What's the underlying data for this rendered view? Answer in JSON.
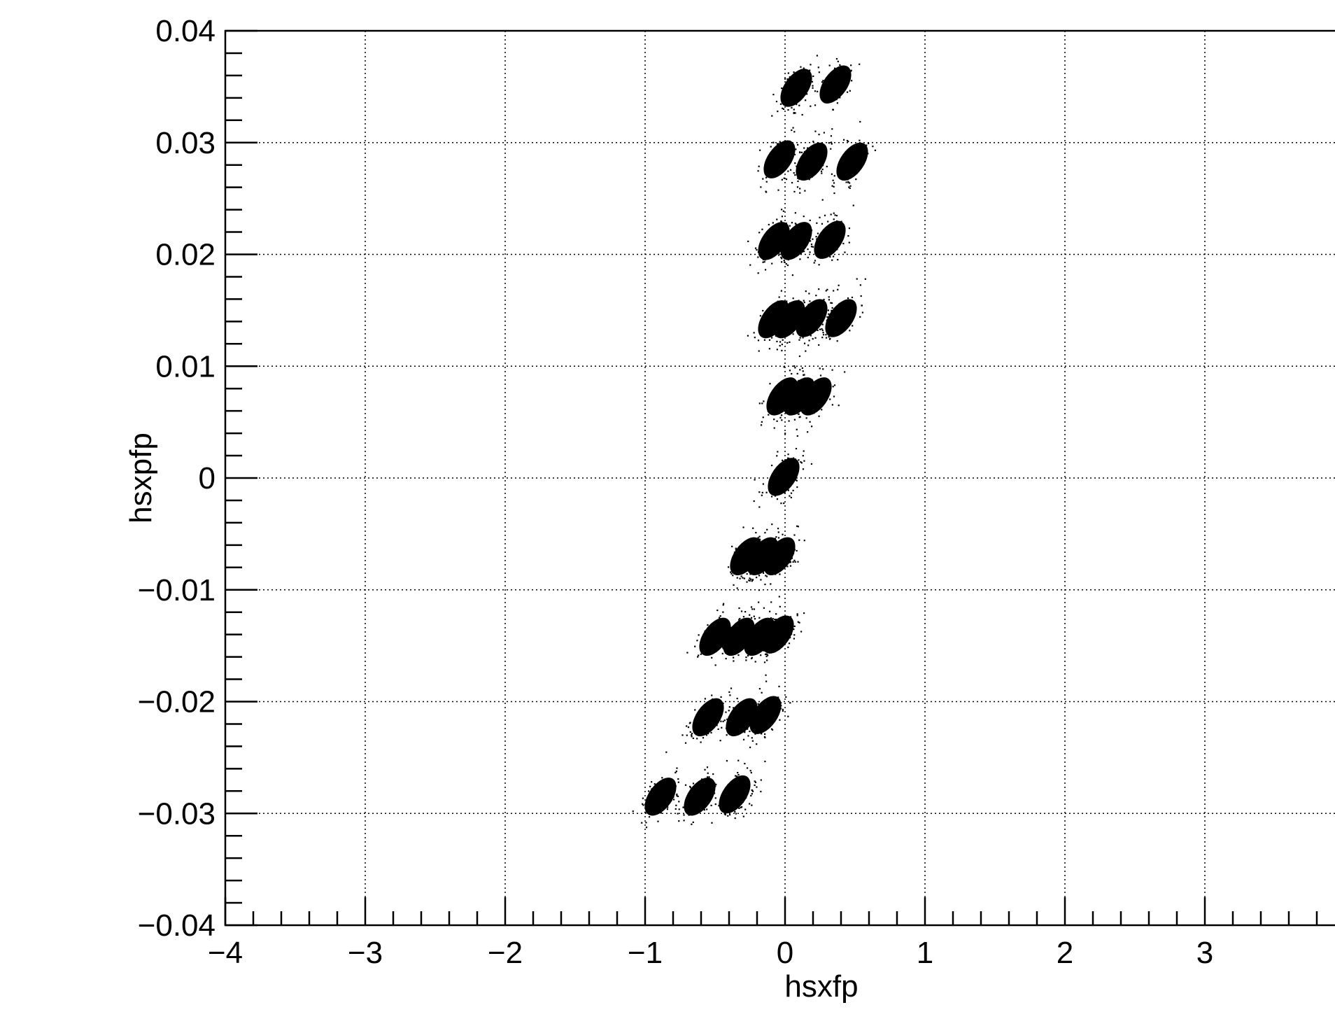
{
  "chart_data": {
    "type": "scatter",
    "xlabel": "hsxfp",
    "ylabel": "hsxpfp",
    "xlim": [
      -4,
      4
    ],
    "ylim": [
      -0.04,
      0.04
    ],
    "grid": true,
    "x_ticks": [
      -4,
      -3,
      -2,
      -1,
      0,
      1,
      2,
      3
    ],
    "x_tick_labels": [
      "−4",
      "−3",
      "−2",
      "−1",
      "0",
      "1",
      "2",
      "3"
    ],
    "y_ticks": [
      -0.04,
      -0.03,
      -0.02,
      -0.01,
      0,
      0.01,
      0.02,
      0.03,
      0.04
    ],
    "y_tick_labels": [
      "−0.04",
      "−0.03",
      "−0.02",
      "−0.01",
      "0",
      "0.01",
      "0.02",
      "0.03",
      "0.04"
    ],
    "point_color": "#000000",
    "clusters": [
      {
        "x": 0.08,
        "y": 0.0349
      },
      {
        "x": 0.36,
        "y": 0.0352
      },
      {
        "x": -0.04,
        "y": 0.0285
      },
      {
        "x": 0.19,
        "y": 0.0283
      },
      {
        "x": 0.48,
        "y": 0.0283
      },
      {
        "x": -0.08,
        "y": 0.0212
      },
      {
        "x": 0.08,
        "y": 0.0212
      },
      {
        "x": 0.32,
        "y": 0.0213
      },
      {
        "x": -0.08,
        "y": 0.0142
      },
      {
        "x": 0.03,
        "y": 0.0142
      },
      {
        "x": 0.19,
        "y": 0.0143
      },
      {
        "x": 0.4,
        "y": 0.0143
      },
      {
        "x": -0.02,
        "y": 0.0073
      },
      {
        "x": 0.1,
        "y": 0.0073
      },
      {
        "x": 0.22,
        "y": 0.0073
      },
      {
        "x": -0.01,
        "y": 0.0001
      },
      {
        "x": -0.28,
        "y": -0.007
      },
      {
        "x": -0.16,
        "y": -0.007
      },
      {
        "x": -0.04,
        "y": -0.007
      },
      {
        "x": -0.5,
        "y": -0.0142
      },
      {
        "x": -0.33,
        "y": -0.0142
      },
      {
        "x": -0.18,
        "y": -0.0142
      },
      {
        "x": -0.05,
        "y": -0.014
      },
      {
        "x": -0.55,
        "y": -0.0214
      },
      {
        "x": -0.31,
        "y": -0.0214
      },
      {
        "x": -0.14,
        "y": -0.0212
      },
      {
        "x": -0.89,
        "y": -0.0285
      },
      {
        "x": -0.61,
        "y": -0.0285
      },
      {
        "x": -0.36,
        "y": -0.0283
      }
    ]
  }
}
